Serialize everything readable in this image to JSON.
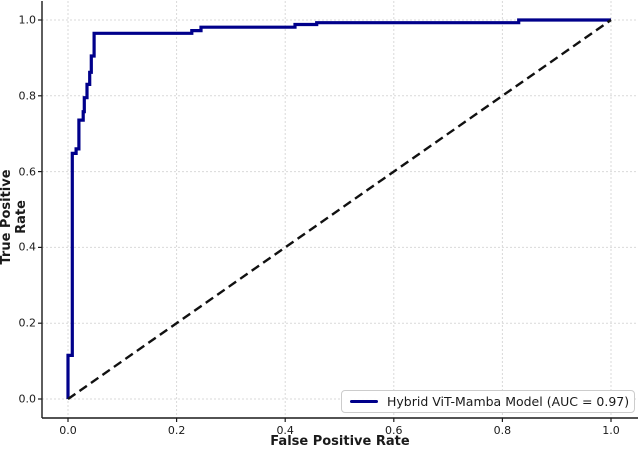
{
  "chart_data": {
    "type": "line",
    "subtype": "roc-step-curve",
    "title": "",
    "xlabel": "False Positive Rate",
    "ylabel": "True Positive Rate",
    "xlim": [
      -0.05,
      1.05
    ],
    "ylim": [
      -0.05,
      1.05
    ],
    "grid": true,
    "grid_color": "#d9d9d9",
    "spine_color": "#1a1a1a",
    "background": "#ffffff",
    "legend_position": "lower right",
    "x_ticks": {
      "values": [
        0.0,
        0.2,
        0.4,
        0.6,
        0.8,
        1.0
      ],
      "labels": [
        "0.0",
        "0.2",
        "0.4",
        "0.6",
        "0.8",
        "1.0"
      ]
    },
    "y_ticks": {
      "values": [
        0.0,
        0.2,
        0.4,
        0.6,
        0.8,
        1.0
      ],
      "labels": [
        "0.0",
        "0.2",
        "0.4",
        "0.6",
        "0.8",
        "1.0"
      ]
    },
    "series": [
      {
        "name": "Hybrid ViT-Mamba Model (AUC = 0.97)",
        "auc": 0.97,
        "color": "#00008b",
        "style": "solid",
        "line_width": 3.2,
        "in_legend": true,
        "points": [
          [
            0.0,
            0.0
          ],
          [
            0.0,
            0.115
          ],
          [
            0.008,
            0.115
          ],
          [
            0.008,
            0.648
          ],
          [
            0.015,
            0.648
          ],
          [
            0.015,
            0.66
          ],
          [
            0.02,
            0.66
          ],
          [
            0.02,
            0.736
          ],
          [
            0.028,
            0.736
          ],
          [
            0.028,
            0.758
          ],
          [
            0.03,
            0.758
          ],
          [
            0.03,
            0.795
          ],
          [
            0.035,
            0.795
          ],
          [
            0.035,
            0.83
          ],
          [
            0.04,
            0.83
          ],
          [
            0.04,
            0.862
          ],
          [
            0.043,
            0.862
          ],
          [
            0.043,
            0.905
          ],
          [
            0.048,
            0.905
          ],
          [
            0.048,
            0.965
          ],
          [
            0.228,
            0.965
          ],
          [
            0.228,
            0.972
          ],
          [
            0.245,
            0.972
          ],
          [
            0.245,
            0.981
          ],
          [
            0.418,
            0.981
          ],
          [
            0.418,
            0.988
          ],
          [
            0.458,
            0.988
          ],
          [
            0.458,
            0.993
          ],
          [
            0.83,
            0.993
          ],
          [
            0.83,
            1.0
          ],
          [
            1.0,
            1.0
          ]
        ]
      },
      {
        "name": "chance-diagonal",
        "color": "#111111",
        "style": "dashed",
        "line_width": 2.4,
        "in_legend": false,
        "points": [
          [
            0.0,
            0.0
          ],
          [
            1.0,
            1.0
          ]
        ]
      }
    ]
  },
  "legend": {
    "label": "Hybrid ViT-Mamba Model (AUC = 0.97)",
    "swatch_color": "#00008b"
  }
}
